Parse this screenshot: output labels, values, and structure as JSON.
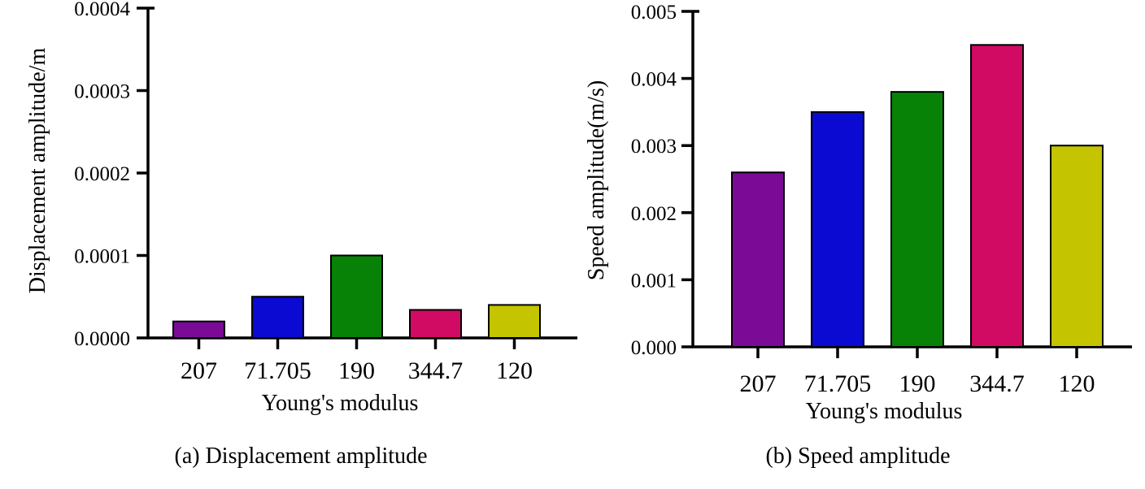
{
  "chart_data": [
    {
      "type": "bar",
      "caption": "(a) Displacement amplitude",
      "xlabel": "Young's modulus",
      "ylabel": "Displacement amplitude/m",
      "categories": [
        "207",
        "71.705",
        "190",
        "344.7",
        "120"
      ],
      "values": [
        2e-05,
        5e-05,
        0.0001,
        3.4e-05,
        4e-05
      ],
      "colors": [
        "#7b0a96",
        "#0a0ad2",
        "#078207",
        "#d10a64",
        "#c4c400"
      ],
      "ylim": [
        0,
        0.0004
      ],
      "yticks": [
        "0.0000",
        "0.0001",
        "0.0002",
        "0.0003",
        "0.0004"
      ],
      "grid": false
    },
    {
      "type": "bar",
      "caption": "(b) Speed amplitude",
      "xlabel": "Young's modulus",
      "ylabel": "Speed amplitude(m/s)",
      "categories": [
        "207",
        "71.705",
        "190",
        "344.7",
        "120"
      ],
      "values": [
        0.0026,
        0.0035,
        0.0038,
        0.0045,
        0.003
      ],
      "colors": [
        "#7b0a96",
        "#0a0ad2",
        "#078207",
        "#d10a64",
        "#c4c400"
      ],
      "ylim": [
        0,
        0.005
      ],
      "yticks": [
        "0.000",
        "0.001",
        "0.002",
        "0.003",
        "0.004",
        "0.005"
      ],
      "grid": false
    }
  ]
}
